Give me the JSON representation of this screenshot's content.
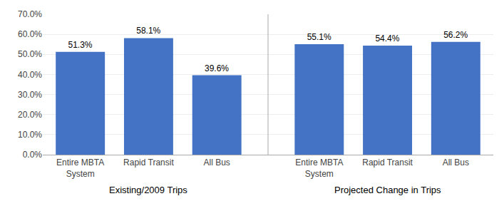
{
  "chart_data": {
    "type": "bar",
    "categories": [
      "Entire MBTA\nSystem",
      "Rapid Transit",
      "All Bus",
      "Entire MBTA\nSystem",
      "Rapid Transit",
      "All Bus"
    ],
    "values": [
      51.3,
      58.1,
      39.6,
      55.1,
      54.4,
      56.2
    ],
    "value_labels": [
      "51.3%",
      "58.1%",
      "39.6%",
      "55.1%",
      "54.4%",
      "56.2%"
    ],
    "data_labels": true,
    "color": "#4472C4",
    "ylim": [
      0,
      70
    ],
    "yticks": [
      {
        "value": 0,
        "label": "0.0%"
      },
      {
        "value": 10,
        "label": "10.0%"
      },
      {
        "value": 20,
        "label": "20.0%"
      },
      {
        "value": 30,
        "label": "30.0%"
      },
      {
        "value": 40,
        "label": "40.0%"
      },
      {
        "value": 50,
        "label": "50.0%"
      },
      {
        "value": 60,
        "label": "60.0%"
      },
      {
        "value": 70,
        "label": "70.0%"
      }
    ],
    "annotations": [
      "Existing/2009 Trips",
      "Projected Change in Trips"
    ],
    "grid": true
  }
}
